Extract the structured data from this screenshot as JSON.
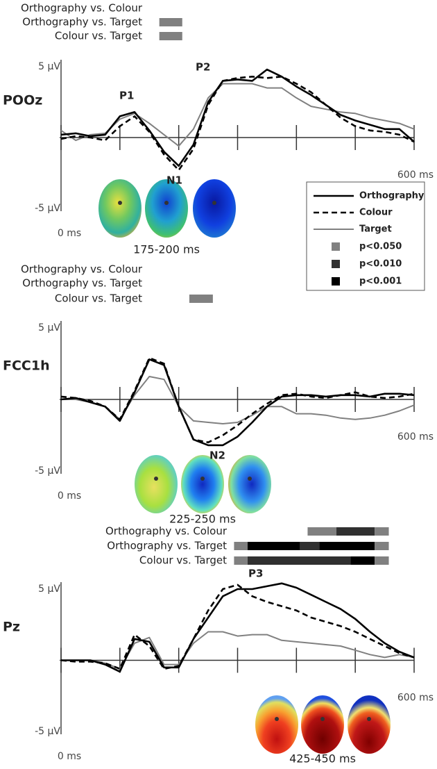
{
  "chart_data": [
    {
      "type": "line",
      "channel": "POOz",
      "x": [
        0,
        25,
        50,
        75,
        100,
        125,
        150,
        175,
        200,
        225,
        250,
        275,
        300,
        325,
        350,
        375,
        400,
        425,
        450,
        475,
        500,
        525,
        550,
        575,
        600
      ],
      "xlim": [
        0,
        600
      ],
      "ylim": [
        -5,
        5
      ],
      "xticks": [
        {
          "value": 0,
          "label": "0 ms"
        },
        {
          "value": 600,
          "label": "600 ms"
        }
      ],
      "minor_xticks": [
        100,
        200,
        300,
        400,
        500
      ],
      "yticks": [
        {
          "value": 5,
          "label": "5 µV"
        },
        {
          "value": -5,
          "label": "-5 µV"
        }
      ],
      "series": [
        {
          "name": "Orthography",
          "color": "#000000",
          "dash": false,
          "values": [
            0.2,
            0.3,
            0.1,
            0.2,
            1.5,
            1.8,
            0.5,
            -1.0,
            -2.0,
            -0.5,
            2.5,
            4.0,
            4.1,
            4.0,
            4.8,
            4.3,
            3.6,
            3.0,
            2.3,
            1.6,
            1.2,
            0.9,
            0.6,
            0.6,
            -0.3
          ]
        },
        {
          "name": "Colour",
          "color": "#000000",
          "dash": true,
          "values": [
            -0.1,
            0.1,
            0,
            -0.2,
            0.8,
            1.5,
            0.4,
            -1.2,
            -2.3,
            -0.8,
            2.3,
            4.0,
            4.2,
            4.3,
            4.2,
            4.3,
            3.8,
            3.2,
            2.3,
            1.4,
            0.8,
            0.5,
            0.4,
            0.2,
            -0.3
          ]
        },
        {
          "name": "Target",
          "color": "#808080",
          "dash": false,
          "values": [
            0.5,
            -0.2,
            0.2,
            0.3,
            1.3,
            1.7,
            1.0,
            0.2,
            -0.6,
            0.6,
            2.8,
            3.8,
            3.8,
            3.8,
            3.5,
            3.5,
            2.8,
            2.2,
            2.0,
            1.8,
            1.7,
            1.4,
            1.2,
            1.0,
            0.6
          ]
        }
      ],
      "significance_levels": [
        {
          "label": "p<0.050",
          "value": 0.05,
          "color": "#808080"
        },
        {
          "label": "p<0.010",
          "value": 0.01,
          "color": "#303030"
        },
        {
          "label": "p<0.001",
          "value": 0.001,
          "color": "#000000"
        }
      ],
      "comparisons": [
        {
          "label": "Orthography vs. Colour",
          "segments": []
        },
        {
          "label": "Orthography vs. Target",
          "segments": [
            {
              "start": 167,
              "end": 206,
              "p": 0.05
            }
          ]
        },
        {
          "label": "Colour vs. Target",
          "segments": [
            {
              "start": 167,
              "end": 206,
              "p": 0.05
            }
          ]
        }
      ],
      "annotations": [
        "P1",
        "P2",
        "N1"
      ],
      "topo_window": "175-200 ms"
    },
    {
      "type": "line",
      "channel": "FCC1h",
      "x": [
        0,
        25,
        50,
        75,
        100,
        125,
        150,
        175,
        200,
        225,
        250,
        275,
        300,
        325,
        350,
        375,
        400,
        425,
        450,
        475,
        500,
        525,
        550,
        575,
        600
      ],
      "xlim": [
        0,
        600
      ],
      "ylim": [
        -5,
        5
      ],
      "xticks": [
        {
          "value": 0,
          "label": "0 ms"
        },
        {
          "value": 600,
          "label": "600 ms"
        }
      ],
      "minor_xticks": [
        100,
        200,
        300,
        400,
        500
      ],
      "yticks": [
        {
          "value": 5,
          "label": "5 µV"
        },
        {
          "value": -5,
          "label": "-5 µV"
        }
      ],
      "series": [
        {
          "color": "#000000",
          "dash": false,
          "values": [
            0,
            0.1,
            -0.2,
            -0.5,
            -1.5,
            0.5,
            2.8,
            2.4,
            -0.5,
            -2.8,
            -3.2,
            -3.2,
            -2.6,
            -1.6,
            -0.5,
            0.2,
            0.3,
            0.3,
            0.2,
            0.3,
            0.3,
            0.2,
            0.4,
            0.4,
            0.3
          ]
        },
        {
          "color": "#000000",
          "dash": true,
          "values": [
            0.2,
            0.1,
            -0.1,
            -0.5,
            -1.4,
            0.6,
            2.9,
            2.5,
            -0.5,
            -2.8,
            -3.0,
            -2.5,
            -1.8,
            -1.0,
            -0.3,
            0.3,
            0.4,
            0.2,
            0.1,
            0.3,
            0.5,
            0.2,
            0.1,
            0.2,
            0.4
          ]
        },
        {
          "color": "#808080",
          "dash": false,
          "values": [
            0,
            0,
            -0.2,
            -0.5,
            -1.4,
            0.3,
            1.6,
            1.4,
            -0.5,
            -1.5,
            -1.6,
            -1.7,
            -1.6,
            -1.1,
            -0.5,
            -0.5,
            -1.0,
            -1.0,
            -1.1,
            -1.3,
            -1.4,
            -1.3,
            -1.1,
            -0.8,
            -0.4
          ]
        }
      ],
      "comparisons": [
        {
          "label": "Orthography vs. Colour",
          "segments": []
        },
        {
          "label": "Orthography vs. Target",
          "segments": []
        },
        {
          "label": "Colour vs. Target",
          "segments": [
            {
              "start": 218,
              "end": 258,
              "p": 0.05
            }
          ]
        }
      ],
      "annotations": [
        "N2"
      ],
      "topo_window": "225-250 ms"
    },
    {
      "type": "line",
      "channel": "Pz",
      "x": [
        0,
        25,
        50,
        75,
        100,
        125,
        150,
        175,
        200,
        225,
        250,
        275,
        300,
        325,
        350,
        375,
        400,
        425,
        450,
        475,
        500,
        525,
        550,
        575,
        600
      ],
      "xlim": [
        0,
        600
      ],
      "ylim": [
        -5,
        5
      ],
      "xticks": [
        {
          "value": 0,
          "label": "0 ms"
        },
        {
          "value": 600,
          "label": "600 ms"
        }
      ],
      "minor_xticks": [
        100,
        200,
        300,
        400,
        500
      ],
      "yticks": [
        {
          "value": 5,
          "label": "5 µV"
        },
        {
          "value": -5,
          "label": "-5 µV"
        }
      ],
      "series": [
        {
          "color": "#000000",
          "dash": false,
          "values": [
            0,
            0,
            0,
            -0.3,
            -0.8,
            1.5,
            1.3,
            -0.5,
            -0.5,
            1.5,
            3.0,
            4.5,
            5.0,
            5.0,
            5.2,
            5.4,
            5.1,
            4.6,
            4.1,
            3.6,
            2.9,
            2.0,
            1.2,
            0.6,
            0.2
          ]
        },
        {
          "color": "#000000",
          "dash": true,
          "values": [
            0,
            -0.1,
            -0.1,
            -0.2,
            -0.6,
            1.8,
            1.0,
            -0.6,
            -0.4,
            1.5,
            3.5,
            5.0,
            5.3,
            4.5,
            4.1,
            3.8,
            3.5,
            3.0,
            2.7,
            2.4,
            2.0,
            1.5,
            1.0,
            0.5,
            0.2
          ]
        },
        {
          "color": "#808080",
          "dash": false,
          "values": [
            0,
            0,
            0,
            -0.2,
            -0.6,
            1.2,
            1.6,
            -0.3,
            -0.3,
            1.2,
            2.0,
            2.0,
            1.7,
            1.8,
            1.8,
            1.4,
            1.3,
            1.2,
            1.1,
            1.0,
            0.7,
            0.4,
            0.2,
            0.4,
            0.2
          ]
        }
      ],
      "comparisons": [
        {
          "label": "Orthography vs. Colour",
          "segments": [
            {
              "start": 419,
              "end": 468,
              "p": 0.05
            },
            {
              "start": 468,
              "end": 533,
              "p": 0.01
            },
            {
              "start": 533,
              "end": 557,
              "p": 0.05
            }
          ]
        },
        {
          "label": "Orthography vs. Target",
          "segments": [
            {
              "start": 294,
              "end": 317,
              "p": 0.05
            },
            {
              "start": 317,
              "end": 406,
              "p": 0.001
            },
            {
              "start": 406,
              "end": 439,
              "p": 0.01
            },
            {
              "start": 439,
              "end": 533,
              "p": 0.001
            },
            {
              "start": 533,
              "end": 557,
              "p": 0.05
            }
          ]
        },
        {
          "label": "Colour vs. Target",
          "segments": [
            {
              "start": 294,
              "end": 317,
              "p": 0.05
            },
            {
              "start": 317,
              "end": 492,
              "p": 0.01
            },
            {
              "start": 492,
              "end": 533,
              "p": 0.001
            },
            {
              "start": 533,
              "end": 557,
              "p": 0.05
            }
          ]
        }
      ],
      "annotations": [
        "P3"
      ],
      "topo_window": "425-450 ms"
    }
  ]
}
